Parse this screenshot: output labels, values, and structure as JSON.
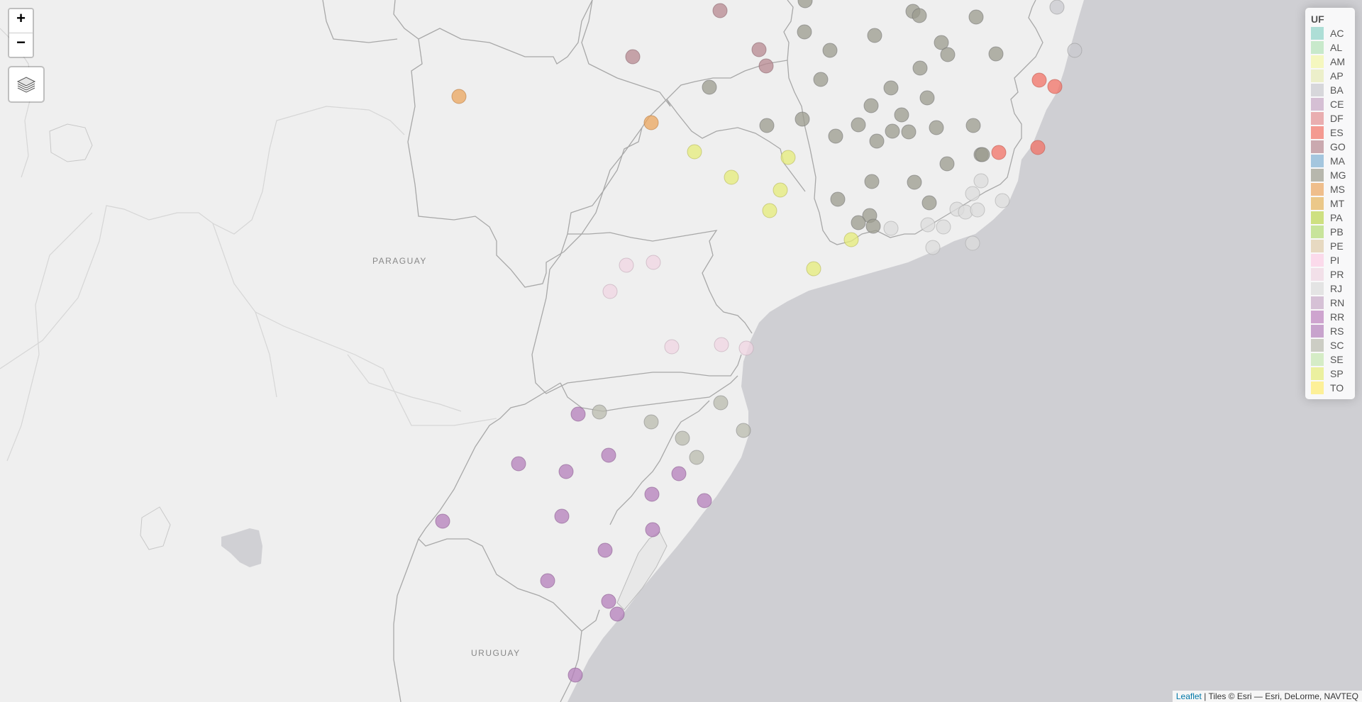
{
  "map": {
    "zoom_in_label": "+",
    "zoom_out_label": "−",
    "basemap_labels": [
      "PARAGUAY",
      "URUGUAY"
    ]
  },
  "legend": {
    "title": "UF",
    "items": [
      {
        "label": "AC",
        "color": "#8dd3c7"
      },
      {
        "label": "AL",
        "color": "#b3e2b8"
      },
      {
        "label": "AM",
        "color": "#f3f7a6"
      },
      {
        "label": "AP",
        "color": "#e7ebb6"
      },
      {
        "label": "BA",
        "color": "#c9c9cf"
      },
      {
        "label": "CE",
        "color": "#c6a7c5"
      },
      {
        "label": "DF",
        "color": "#e38e92"
      },
      {
        "label": "ES",
        "color": "#f27265"
      },
      {
        "label": "GO",
        "color": "#b78890"
      },
      {
        "label": "MA",
        "color": "#80b1d3"
      },
      {
        "label": "MG",
        "color": "#9b9b8d"
      },
      {
        "label": "MS",
        "color": "#eba55e"
      },
      {
        "label": "MT",
        "color": "#e6b45a"
      },
      {
        "label": "PA",
        "color": "#bcd54f"
      },
      {
        "label": "PB",
        "color": "#b4db73"
      },
      {
        "label": "PE",
        "color": "#e0ccaa"
      },
      {
        "label": "PI",
        "color": "#fccde5"
      },
      {
        "label": "PR",
        "color": "#f0d6e3"
      },
      {
        "label": "RJ",
        "color": "#dcdcdc"
      },
      {
        "label": "RN",
        "color": "#c8aac8"
      },
      {
        "label": "RR",
        "color": "#bc80bd"
      },
      {
        "label": "RS",
        "color": "#b47fbb"
      },
      {
        "label": "SC",
        "color": "#b9bbae"
      },
      {
        "label": "SE",
        "color": "#c6e7b0"
      },
      {
        "label": "SP",
        "color": "#e6ec79"
      },
      {
        "label": "TO",
        "color": "#ffed6f"
      }
    ]
  },
  "attribution": {
    "leaflet": "Leaflet",
    "tiles": " | Tiles © Esri — Esri, DeLorme, NAVTEQ"
  }
}
